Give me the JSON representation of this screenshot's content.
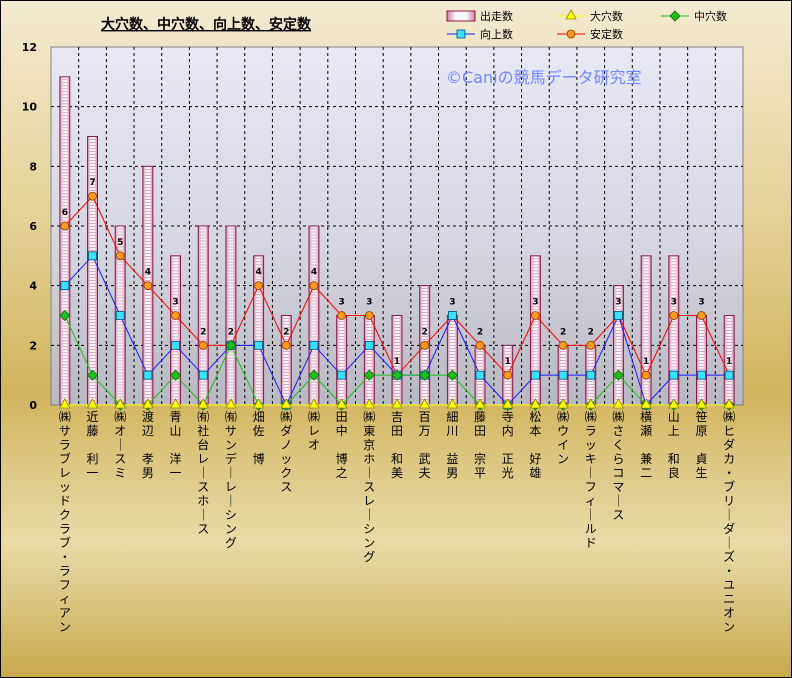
{
  "chart_data": {
    "type": "bar",
    "title": "大穴数、中穴数、向上数、安定数",
    "watermark": "©Caniの競馬データ研究室",
    "ylim": [
      0,
      12
    ],
    "y_ticks": [
      "0",
      "2",
      "4",
      "6",
      "8",
      "10",
      "12"
    ],
    "grid": true,
    "legend": "top-right",
    "categories": [
      "㈱サラブレッドクラブ・ラフィアン",
      "近藤　利一",
      "㈱オースミ",
      "渡辺　孝男",
      "青山　洋一",
      "㈲社台レースホース",
      "㈲サンデーレーシング",
      "畑佐　博",
      "㈱ダノックス",
      "㈱レオ",
      "田中　博之",
      "㈱東京ホースレーシング",
      "吉田　和美",
      "百万　武夫",
      "細川　益男",
      "藤田　宗平",
      "寺内　正光",
      "松本　好雄",
      "㈱ウイン",
      "㈱ラッキーフィールド",
      "㈱さくらコマース",
      "横瀬　兼二",
      "山上　和良",
      "笹原　貞生",
      "㈱ヒダカ・ブリーダーズ・ユニオン"
    ],
    "series": [
      {
        "name": "出走数",
        "kind": "bar",
        "values": [
          11,
          9,
          6,
          8,
          5,
          6,
          6,
          5,
          3,
          6,
          3,
          3,
          3,
          4,
          3,
          2,
          2,
          5,
          2,
          2,
          4,
          5,
          5,
          3,
          3
        ]
      },
      {
        "name": "大穴数",
        "kind": "line",
        "values": [
          0,
          0,
          0,
          0,
          0,
          0,
          0,
          0,
          0,
          0,
          0,
          0,
          0,
          0,
          0,
          0,
          0,
          0,
          0,
          0,
          0,
          0,
          0,
          0,
          0
        ]
      },
      {
        "name": "中穴数",
        "kind": "line",
        "values": [
          3,
          1,
          0,
          0,
          1,
          0,
          2,
          0,
          0,
          1,
          0,
          1,
          1,
          1,
          1,
          0,
          0,
          0,
          0,
          0,
          1,
          0,
          0,
          0,
          0
        ]
      },
      {
        "name": "向上数",
        "kind": "line",
        "values": [
          4,
          5,
          3,
          1,
          2,
          1,
          2,
          2,
          0,
          2,
          1,
          2,
          1,
          1,
          3,
          1,
          0,
          1,
          1,
          1,
          3,
          0,
          1,
          1,
          1
        ]
      },
      {
        "name": "安定数",
        "kind": "line",
        "values": [
          6,
          7,
          5,
          4,
          3,
          2,
          2,
          4,
          2,
          4,
          3,
          3,
          1,
          2,
          3,
          2,
          1,
          3,
          2,
          2,
          3,
          1,
          3,
          3,
          1
        ]
      }
    ],
    "data_labels_series": "安定数",
    "colors": {
      "bar_fill": "#efe3ea",
      "bar_stroke": "#8a1a4a",
      "大穴数": "#ffff00",
      "中穴数": "#19c219",
      "向上数": "#1a1aff",
      "向上数_marker": "#33e5ff",
      "安定数": "#ff0000",
      "安定数_marker": "#ff9a1a"
    }
  }
}
